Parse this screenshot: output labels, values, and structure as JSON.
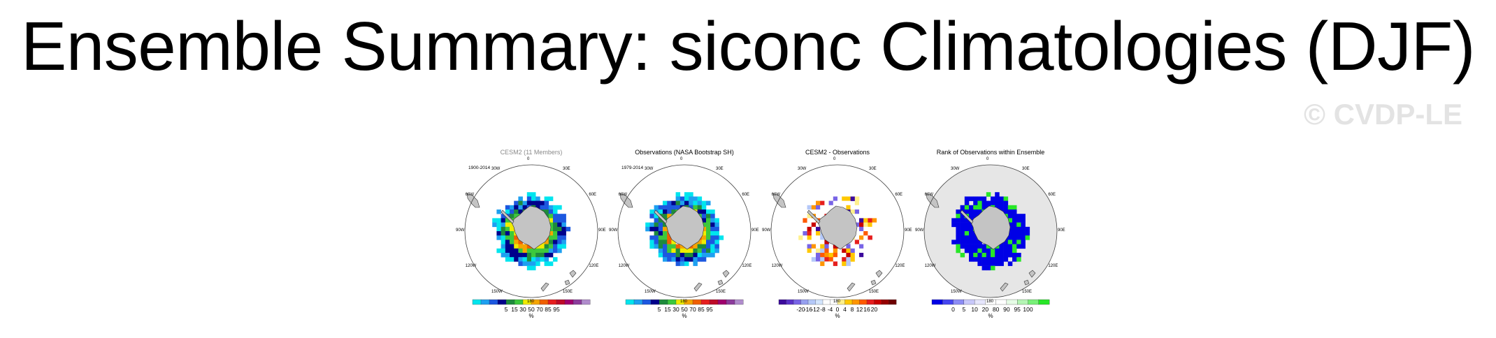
{
  "page": {
    "title": "Ensemble Summary: siconc Climatologies (DJF)",
    "watermark": "© CVDP-LE"
  },
  "map_labels": {
    "lon": [
      "0",
      "30E",
      "60E",
      "90E",
      "120E",
      "150E",
      "180",
      "150W",
      "120W",
      "90W",
      "60W",
      "30W"
    ]
  },
  "panels": [
    {
      "title": "CESM2 (11 Members)",
      "period": "1900-2014",
      "colorbar": {
        "colors": [
          "#00e5ee",
          "#1ea0f0",
          "#1c58e0",
          "#00008b",
          "#1e8b3c",
          "#3cc83c",
          "#f0ec00",
          "#f5a500",
          "#f06000",
          "#e61e1e",
          "#be0a28",
          "#a0006e",
          "#8c3c9c",
          "#b08ccc"
        ],
        "ticks": [
          "5",
          "15",
          "30",
          "50",
          "70",
          "85",
          "95"
        ],
        "units": "%"
      }
    },
    {
      "title": "Observations (NASA Bootstrap SH)",
      "period": "1979-2014",
      "colorbar": {
        "colors": [
          "#00e5ee",
          "#1ea0f0",
          "#1c58e0",
          "#00008b",
          "#1e8b3c",
          "#3cc83c",
          "#f0ec00",
          "#f5a500",
          "#f06000",
          "#e61e1e",
          "#be0a28",
          "#a0006e",
          "#8c3c9c",
          "#b08ccc"
        ],
        "ticks": [
          "5",
          "15",
          "30",
          "50",
          "70",
          "85",
          "95"
        ],
        "units": "%"
      }
    },
    {
      "title": "CESM2 - Observations",
      "period": "",
      "colorbar": {
        "colors": [
          "#3c0a9c",
          "#5a32c8",
          "#7864e6",
          "#96a0f0",
          "#b4c8f8",
          "#d2e4fc",
          "#ffffff",
          "#ffffff",
          "#fff08c",
          "#ffc800",
          "#ff9600",
          "#ff5a00",
          "#e61e1e",
          "#c80000",
          "#960000",
          "#6e0000"
        ],
        "ticks": [
          "-20",
          "-16",
          "-12",
          "-8",
          "-4",
          "0",
          "4",
          "8",
          "12",
          "16",
          "20"
        ],
        "units": "%"
      }
    },
    {
      "title": "Rank of Observations within Ensemble",
      "period": "",
      "colorbar": {
        "colors": [
          "#0000e6",
          "#4646f0",
          "#8c8cf5",
          "#c8c8fa",
          "#e6e6fc",
          "#ffffff",
          "#ffffff",
          "#e6fce6",
          "#b4f5b4",
          "#78f078",
          "#28e628"
        ],
        "ticks": [
          "0",
          "5",
          "10",
          "20",
          "80",
          "90",
          "95",
          "100"
        ],
        "units": "%"
      }
    }
  ],
  "chart_data": [
    {
      "type": "heatmap",
      "title": "CESM2 (11 Members)",
      "subtitle": "1900-2014",
      "region": "Southern Hemisphere polar stereographic",
      "units": "%",
      "colorbar_ticks": [
        5,
        15,
        30,
        50,
        70,
        85,
        95
      ]
    },
    {
      "type": "heatmap",
      "title": "Observations (NASA Bootstrap SH)",
      "subtitle": "1979-2014",
      "region": "Southern Hemisphere polar stereographic",
      "units": "%",
      "colorbar_ticks": [
        5,
        15,
        30,
        50,
        70,
        85,
        95
      ]
    },
    {
      "type": "heatmap",
      "title": "CESM2 - Observations",
      "region": "Southern Hemisphere polar stereographic",
      "units": "%",
      "colorbar_ticks": [
        -20,
        -16,
        -12,
        -8,
        -4,
        0,
        4,
        8,
        12,
        16,
        20
      ]
    },
    {
      "type": "heatmap",
      "title": "Rank of Observations within Ensemble",
      "region": "Southern Hemisphere polar stereographic",
      "units": "%",
      "colorbar_ticks": [
        0,
        5,
        10,
        20,
        80,
        90,
        95,
        100
      ]
    }
  ]
}
